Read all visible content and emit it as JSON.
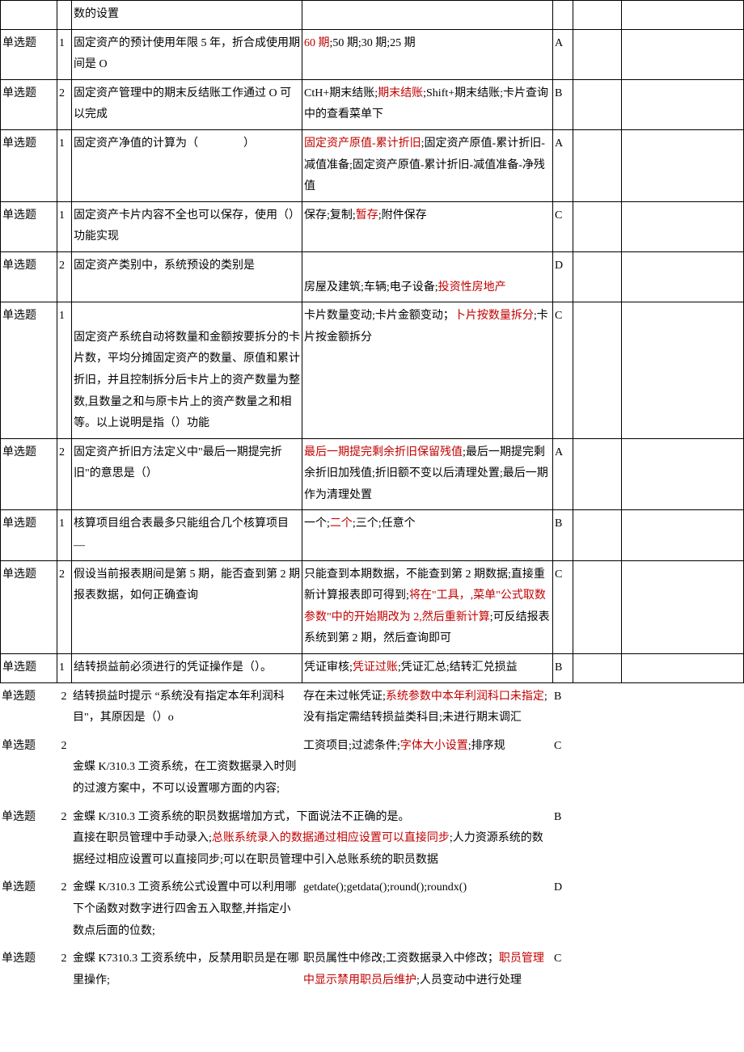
{
  "labels": {
    "single_choice": "单选题"
  },
  "colors": {
    "highlight": "#c00000",
    "text": "#000000",
    "border": "#000000",
    "background": "#ffffff"
  },
  "rows_bordered": [
    {
      "type_key": "single_choice",
      "idx": "",
      "q_parts": [
        {
          "t": "数的设置"
        }
      ],
      "opt_parts": [],
      "ans": "",
      "show_type": false
    },
    {
      "type_key": "single_choice",
      "idx": "1",
      "q_parts": [
        {
          "t": "固定资产的预计使用年限 5 年，折合成使用期间是 O"
        }
      ],
      "opt_parts": [
        {
          "t": "60 期",
          "r": true
        },
        {
          "t": ";50 期;30 期;25 期"
        }
      ],
      "ans": "A"
    },
    {
      "type_key": "single_choice",
      "idx": "2",
      "q_parts": [
        {
          "t": "固定资产管理中的期末反结账工作通过 O 可以完成"
        }
      ],
      "opt_parts": [
        {
          "t": "CtH+期末结账;"
        },
        {
          "t": "期末结账",
          "r": true
        },
        {
          "t": ";Shift+期末结账;卡片查询中的查看菜单下"
        }
      ],
      "ans": "B"
    },
    {
      "type_key": "single_choice",
      "idx": "1",
      "q_parts": [
        {
          "t": "固定资产净值的计算为（　　　　）"
        }
      ],
      "opt_parts": [
        {
          "t": "固定资产原值-累计折旧",
          "r": true
        },
        {
          "t": ";固定资产原值-累计折旧-减值准备;固定资产原值-累计折旧-减值准备-净残值"
        }
      ],
      "ans": "A"
    },
    {
      "type_key": "single_choice",
      "idx": "1",
      "q_parts": [
        {
          "t": "固定资产卡片内容不全也可以保存，使用（）功能实现"
        }
      ],
      "opt_parts": [
        {
          "t": "保存;复制;"
        },
        {
          "t": "暂存",
          "r": true
        },
        {
          "t": ";附件保存"
        }
      ],
      "ans": "C"
    },
    {
      "type_key": "single_choice",
      "idx": "2",
      "q_parts": [
        {
          "t": "固定资产类别中，系统预设的类别是"
        }
      ],
      "opt_parts": [
        {
          "t": "\n房屋及建筑;车辆;电子设备;"
        },
        {
          "t": "投资性房地产",
          "r": true
        }
      ],
      "ans": "D"
    },
    {
      "type_key": "single_choice",
      "idx": "1",
      "q_parts": [
        {
          "t": "\n固定资产系统自动将数量和金额按要拆分的卡片数，平均分摊固定资产的数量、原值和累计折旧，并且控制拆分后卡片上的资产数量为整数,且数量之和与原卡片上的资产数量之和相等。以上说明是指（）功能"
        }
      ],
      "opt_parts": [
        {
          "t": "卡片数量变动;卡片金额变动；"
        },
        {
          "t": "卜片按数量拆分",
          "r": true
        },
        {
          "t": ";卡片按金额拆分"
        }
      ],
      "ans": "C"
    },
    {
      "type_key": "single_choice",
      "idx": "2",
      "q_parts": [
        {
          "t": "固定资产折旧方法定义中\"最后一期提完折旧\"的意思是（）"
        }
      ],
      "opt_parts": [
        {
          "t": "最后一期提完剩余折旧保留残值",
          "r": true
        },
        {
          "t": ";最后一期提完剩余折旧加残值;折旧额不变以后清理处置;最后一期作为清理处置"
        }
      ],
      "ans": "A"
    },
    {
      "type_key": "single_choice",
      "idx": "1",
      "q_parts": [
        {
          "t": "核算项目组合表最多只能组合几个核算项目 —"
        }
      ],
      "opt_parts": [
        {
          "t": "一个;"
        },
        {
          "t": "二个",
          "r": true
        },
        {
          "t": ";三个;任意个"
        }
      ],
      "ans": "B"
    },
    {
      "type_key": "single_choice",
      "idx": "2",
      "q_parts": [
        {
          "t": "假设当前报表期间是第 5 期，能否查到第 2 期报表数据，如何正确查询"
        }
      ],
      "opt_parts": [
        {
          "t": "只能查到本期数据，不能查到第 2 期数据;直接重新计算报表即可得到;"
        },
        {
          "t": "将在\"工具，,菜单\"公式取数参数\"中的开始期改为 2,然后重新计算",
          "r": true
        },
        {
          "t": ";可反结报表系统到第 2 期，然后查询即可"
        }
      ],
      "ans": "C"
    },
    {
      "type_key": "single_choice",
      "idx": "1",
      "q_parts": [
        {
          "t": "结转损益前必须进行的凭证操作是（）。"
        }
      ],
      "opt_parts": [
        {
          "t": "凭证审核;"
        },
        {
          "t": "凭证过账",
          "r": true
        },
        {
          "t": ";凭证汇总;结转汇兑损益"
        }
      ],
      "ans": "B"
    }
  ],
  "rows_open": [
    {
      "type_key": "single_choice",
      "idx": "2",
      "q_parts": [
        {
          "t": "结转损益时提示 “系统没有指定本年利润科目\"，其原因是（）o"
        }
      ],
      "opt_parts": [
        {
          "t": "存在未过帐凭证;"
        },
        {
          "t": "系统参数中本年利润科口未指定",
          "r": true
        },
        {
          "t": ";没有指定需结转损益类科目;未进行期末调汇"
        }
      ],
      "ans": "B"
    },
    {
      "type_key": "single_choice",
      "idx": "2",
      "q_parts": [
        {
          "t": "\n金蝶 K/310.3 工资系统，在工资数据录入时则的过渡方案中，不可以设置哪方面的内容;"
        }
      ],
      "opt_parts": [
        {
          "t": "工资项目;过滤条件;"
        },
        {
          "t": "字体大小设置",
          "r": true
        },
        {
          "t": ";排序规"
        }
      ],
      "ans": "C"
    },
    {
      "type_key": "single_choice",
      "idx": "2",
      "q_parts": [
        {
          "t": "金蝶 K/310.3 工资系统的职员数据增加方式，下面说法不正确的是。\n直接在职员管理中手动录入;"
        },
        {
          "t": "总账系统录入的数据通过相应设置可以直接同步",
          "r": true
        },
        {
          "t": ";人力资源系统的数据经过相应设置可以直接同步;可以在职员管理中引入总账系统的职员数据"
        }
      ],
      "opt_parts": [],
      "ans": "B",
      "merge_opts": true
    },
    {
      "type_key": "single_choice",
      "idx": "2",
      "q_parts": [
        {
          "t": "金蝶 K/310.3 工资系统公式设置中可以利用哪下个函数对数字进行四舍五入取整,并指定小数点后面的位数;"
        }
      ],
      "opt_parts": [
        {
          "t": "getdate();getdata();round();roundx()"
        }
      ],
      "ans": "D"
    },
    {
      "type_key": "single_choice",
      "idx": "2",
      "q_parts": [
        {
          "t": "金蝶 K7310.3 工资系统中，反禁用职员是在哪里操作;"
        }
      ],
      "opt_parts": [
        {
          "t": "职员属性中修改;工资数据录入中修改；"
        },
        {
          "t": "职员管理中显示禁用职员后维护",
          "r": true
        },
        {
          "t": ";人员变动中进行处理"
        }
      ],
      "ans": "C"
    }
  ]
}
